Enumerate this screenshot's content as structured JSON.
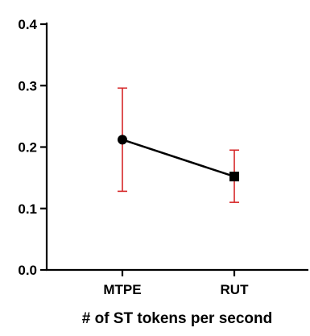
{
  "chart_data": {
    "type": "line",
    "categories": [
      "MTPE",
      "RUT"
    ],
    "series": [
      {
        "values": [
          0.212,
          0.152
        ],
        "error_low": [
          0.128,
          0.11
        ],
        "error_high": [
          0.296,
          0.195
        ],
        "markers": [
          "circle",
          "square"
        ]
      }
    ],
    "title": "",
    "xlabel": "# of ST tokens per second",
    "ylabel": "",
    "ylim": [
      0.0,
      0.4
    ],
    "yticks": [
      "0.0",
      "0.1",
      "0.2",
      "0.3",
      "0.4"
    ],
    "grid": false,
    "colors": {
      "line": "#000000",
      "marker": "#000000",
      "error_bar": "#d62728",
      "axis": "#000000"
    }
  }
}
